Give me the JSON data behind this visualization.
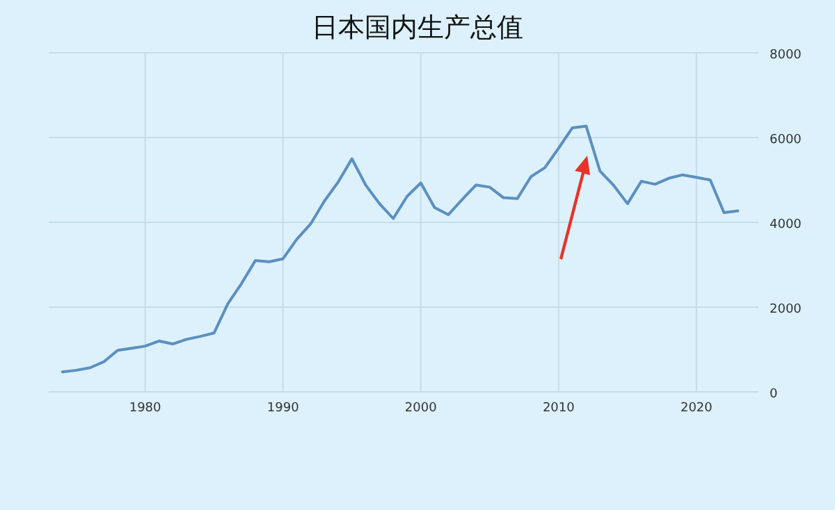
{
  "chart_data": {
    "type": "line",
    "title": "日本国内生产总值",
    "x": [
      1974,
      1975,
      1976,
      1977,
      1978,
      1979,
      1980,
      1981,
      1982,
      1983,
      1984,
      1985,
      1986,
      1987,
      1988,
      1989,
      1990,
      1991,
      1992,
      1993,
      1994,
      1995,
      1996,
      1997,
      1998,
      1999,
      2000,
      2001,
      2002,
      2003,
      2004,
      2005,
      2006,
      2007,
      2008,
      2009,
      2010,
      2011,
      2012,
      2013,
      2014,
      2015,
      2016,
      2017,
      2018,
      2019,
      2020,
      2021,
      2022,
      2023
    ],
    "series": [
      {
        "color": "#5b8fc0",
        "values": [
          470,
          510,
          570,
          710,
          980,
          1030,
          1080,
          1200,
          1130,
          1240,
          1310,
          1390,
          2080,
          2560,
          3100,
          3070,
          3140,
          3600,
          3960,
          4500,
          4950,
          5500,
          4880,
          4440,
          4090,
          4610,
          4930,
          4350,
          4180,
          4540,
          4880,
          4830,
          4580,
          4560,
          5080,
          5290,
          5750,
          6230,
          6270,
          5210,
          4870,
          4440,
          4970,
          4900,
          5040,
          5120,
          5060,
          5000,
          4230,
          4270
        ]
      }
    ],
    "xlim": [
      1973,
      2024.5
    ],
    "ylim": [
      0,
      8000
    ],
    "xticks": [
      1980,
      1990,
      2000,
      2010,
      2020
    ],
    "yticks": [
      0,
      2000,
      4000,
      6000,
      8000
    ],
    "grid": true
  }
}
